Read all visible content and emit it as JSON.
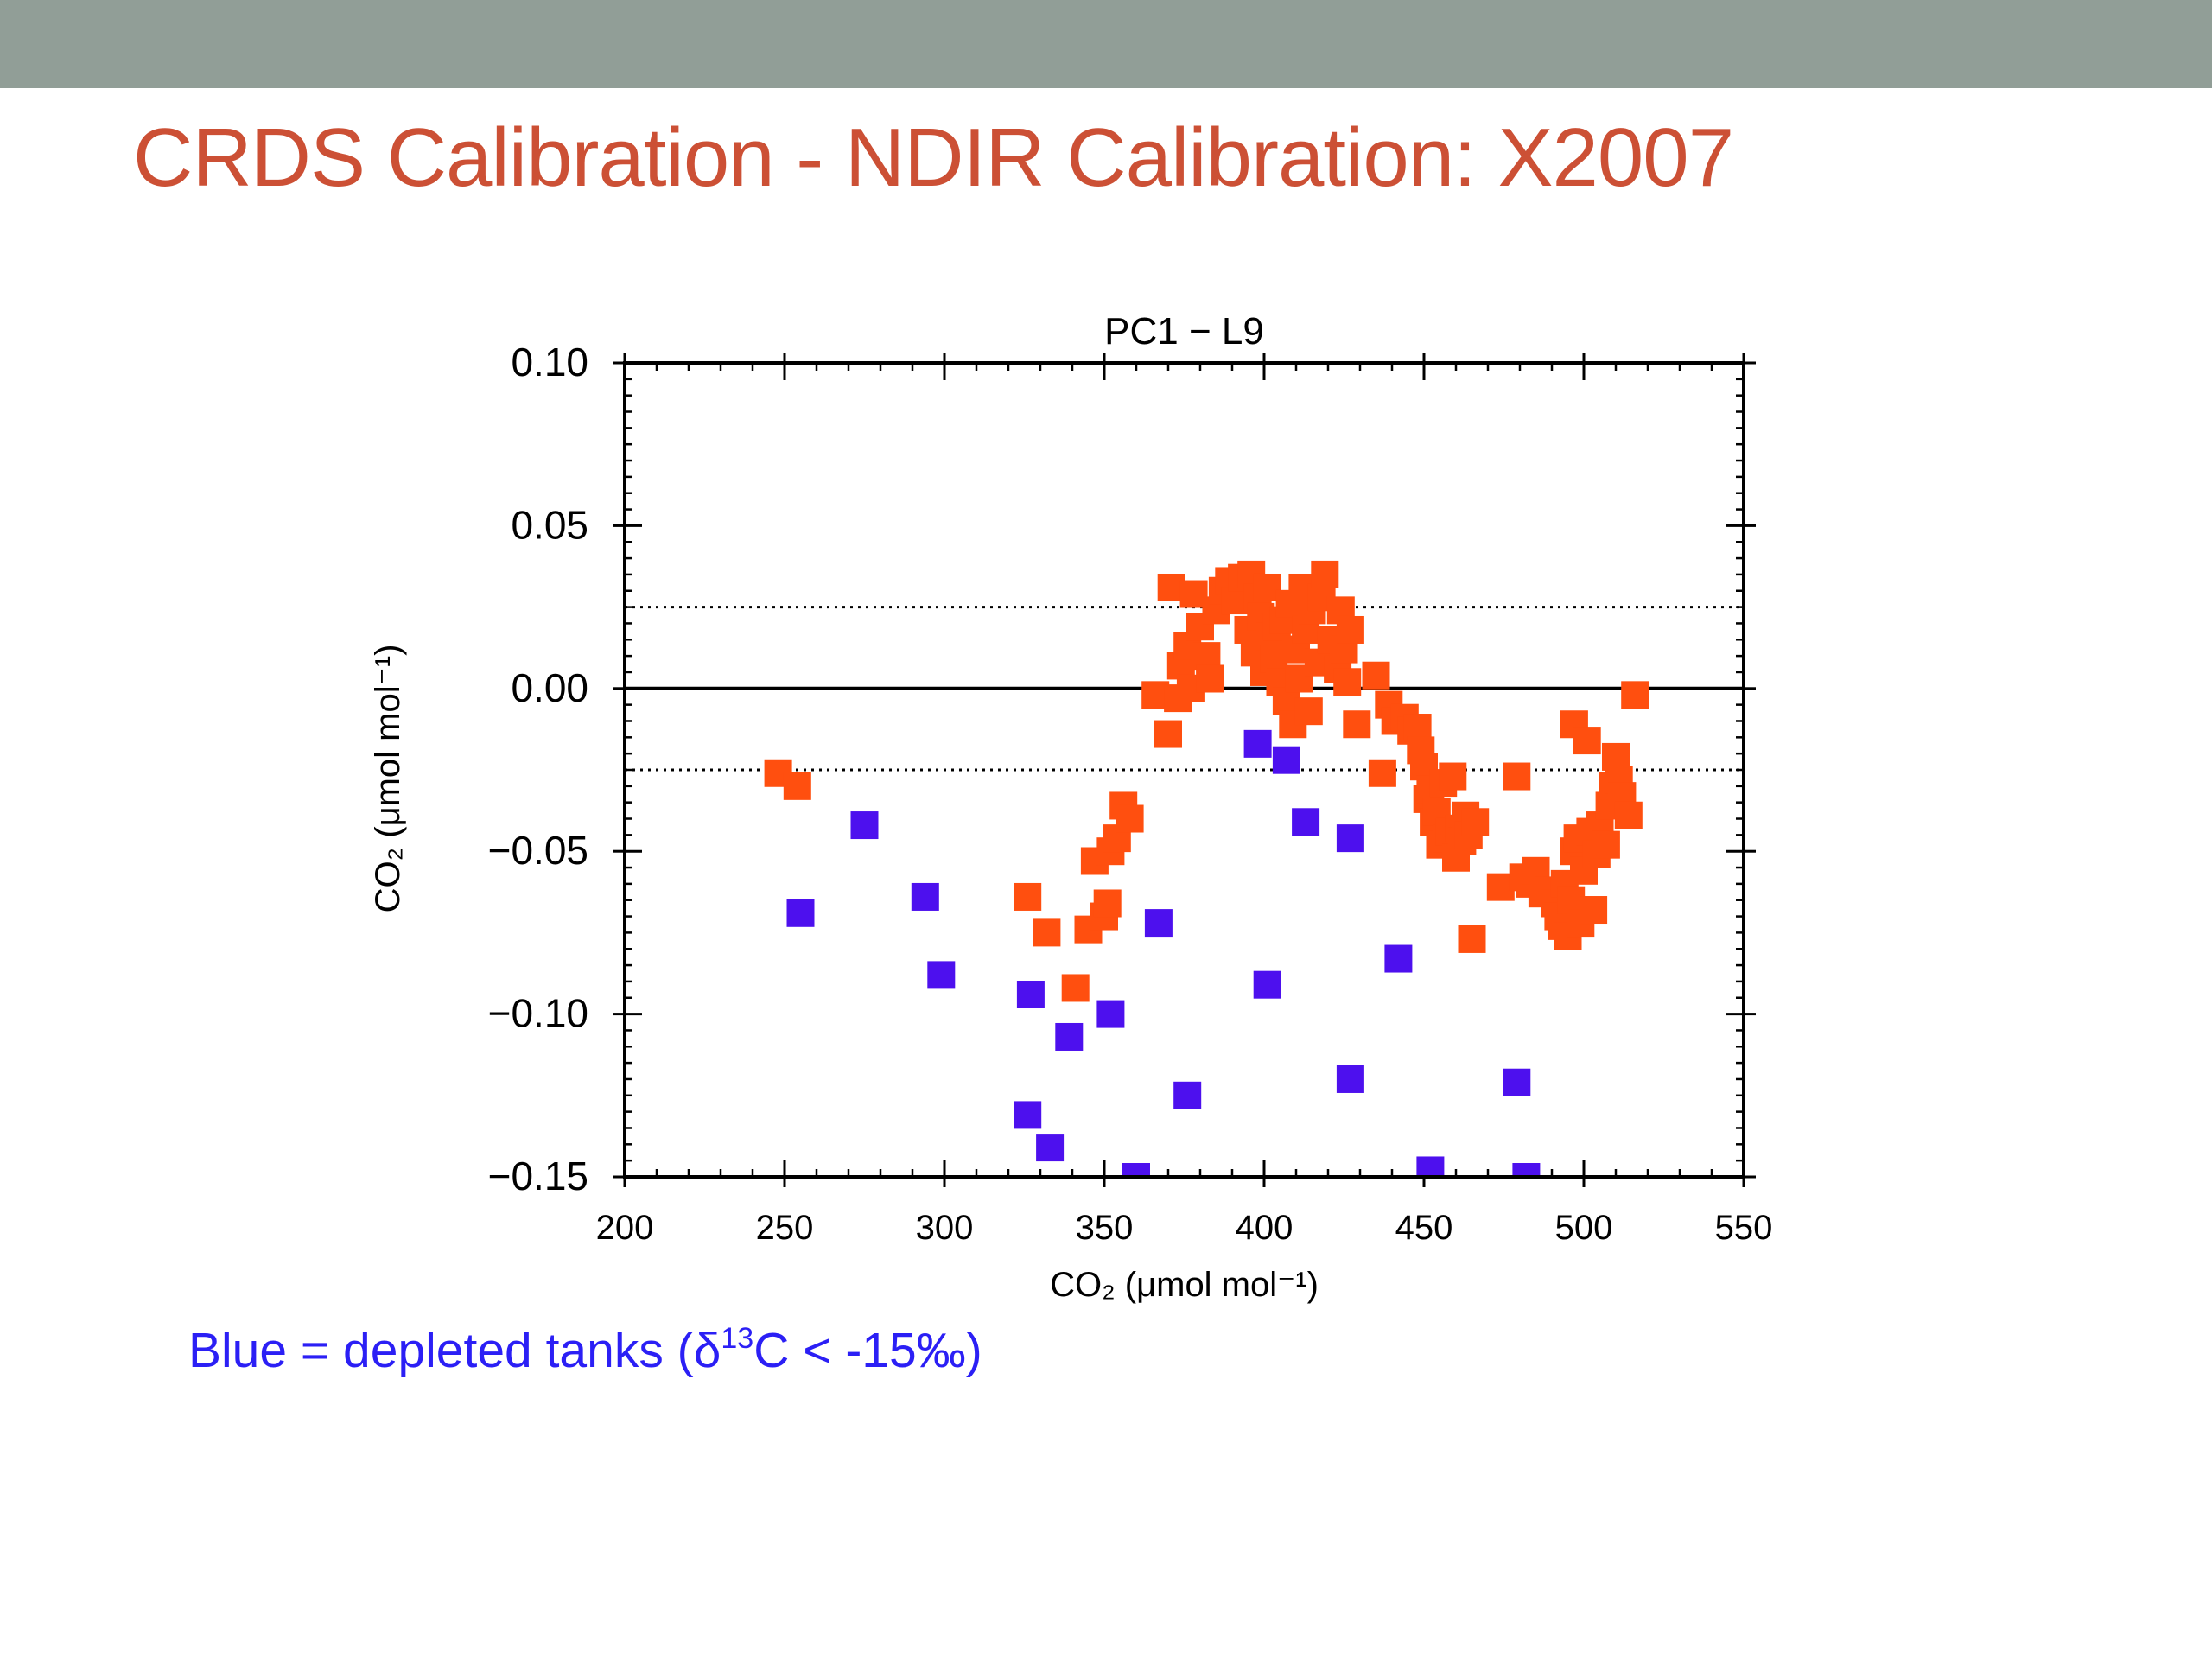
{
  "slide": {
    "title": "CRDS Calibration - NDIR Calibration:  X2007",
    "caption_prefix": "Blue = depleted tanks (δ",
    "caption_sup": "13",
    "caption_suffix": "C < -15‰)",
    "caption_color": "#2b1ff5",
    "title_color": "#cc5035"
  },
  "chart_data": {
    "type": "scatter",
    "title": "PC1 − L9",
    "xlabel": "CO₂ (μmol mol⁻¹)",
    "ylabel": "CO₂ (μmol mol⁻¹)",
    "xlim": [
      200,
      550
    ],
    "ylim": [
      -0.15,
      0.1
    ],
    "xticks": [
      "200",
      "250",
      "300",
      "350",
      "400",
      "450",
      "500",
      "550"
    ],
    "yticks": [
      "0.10",
      "0.05",
      "0.00",
      "−0.05",
      "−0.10",
      "−0.15"
    ],
    "ref_lines": [
      {
        "y": 0.0,
        "style": "solid"
      },
      {
        "y": 0.025,
        "style": "dotted"
      },
      {
        "y": -0.025,
        "style": "dotted"
      }
    ],
    "grid": false,
    "marker": "square",
    "series": [
      {
        "color": "#ff4f0f",
        "points": [
          [
            248,
            -0.026
          ],
          [
            254,
            -0.03
          ],
          [
            326,
            -0.064
          ],
          [
            332,
            -0.075
          ],
          [
            341,
            -0.092
          ],
          [
            345,
            -0.074
          ],
          [
            347,
            -0.053
          ],
          [
            350,
            -0.07
          ],
          [
            351,
            -0.066
          ],
          [
            352,
            -0.05
          ],
          [
            354,
            -0.046
          ],
          [
            356,
            -0.036
          ],
          [
            358,
            -0.04
          ],
          [
            366,
            -0.002
          ],
          [
            370,
            -0.014
          ],
          [
            371,
            0.031
          ],
          [
            373,
            -0.003
          ],
          [
            374,
            0.007
          ],
          [
            376,
            0.013
          ],
          [
            377,
            0.0
          ],
          [
            378,
            0.029
          ],
          [
            380,
            0.019
          ],
          [
            382,
            0.01
          ],
          [
            383,
            0.003
          ],
          [
            385,
            0.024
          ],
          [
            387,
            0.03
          ],
          [
            389,
            0.033
          ],
          [
            391,
            0.027
          ],
          [
            393,
            0.034
          ],
          [
            395,
            0.018
          ],
          [
            396,
            0.035
          ],
          [
            397,
            0.011
          ],
          [
            398,
            0.028
          ],
          [
            399,
            0.022
          ],
          [
            400,
            0.005
          ],
          [
            401,
            0.031
          ],
          [
            402,
            0.016
          ],
          [
            403,
            0.009
          ],
          [
            404,
            0.019
          ],
          [
            405,
            0.002
          ],
          [
            406,
            0.021
          ],
          [
            407,
            -0.004
          ],
          [
            408,
            0.026
          ],
          [
            409,
            -0.011
          ],
          [
            410,
            0.012
          ],
          [
            411,
            0.003
          ],
          [
            412,
            0.031
          ],
          [
            413,
            0.018
          ],
          [
            414,
            -0.007
          ],
          [
            415,
            0.024
          ],
          [
            417,
            0.008
          ],
          [
            418,
            0.028
          ],
          [
            419,
            0.035
          ],
          [
            421,
            0.015
          ],
          [
            423,
            0.006
          ],
          [
            424,
            0.024
          ],
          [
            425,
            0.012
          ],
          [
            426,
            0.002
          ],
          [
            427,
            0.018
          ],
          [
            429,
            -0.011
          ],
          [
            435,
            0.004
          ],
          [
            437,
            -0.026
          ],
          [
            439,
            -0.005
          ],
          [
            441,
            -0.01
          ],
          [
            444,
            -0.009
          ],
          [
            446,
            -0.013
          ],
          [
            448,
            -0.012
          ],
          [
            449,
            -0.019
          ],
          [
            450,
            -0.024
          ],
          [
            451,
            -0.034
          ],
          [
            452,
            -0.031
          ],
          [
            453,
            -0.041
          ],
          [
            454,
            -0.038
          ],
          [
            455,
            -0.048
          ],
          [
            456,
            -0.029
          ],
          [
            457,
            -0.046
          ],
          [
            458,
            -0.044
          ],
          [
            459,
            -0.027
          ],
          [
            460,
            -0.052
          ],
          [
            461,
            -0.043
          ],
          [
            462,
            -0.047
          ],
          [
            463,
            -0.039
          ],
          [
            464,
            -0.045
          ],
          [
            465,
            -0.077
          ],
          [
            466,
            -0.041
          ],
          [
            474,
            -0.061
          ],
          [
            479,
            -0.027
          ],
          [
            481,
            -0.058
          ],
          [
            483,
            -0.06
          ],
          [
            485,
            -0.056
          ],
          [
            487,
            -0.063
          ],
          [
            489,
            -0.062
          ],
          [
            491,
            -0.066
          ],
          [
            492,
            -0.07
          ],
          [
            493,
            -0.073
          ],
          [
            494,
            -0.06
          ],
          [
            495,
            -0.076
          ],
          [
            496,
            -0.065
          ],
          [
            497,
            -0.05
          ],
          [
            497,
            -0.011
          ],
          [
            498,
            -0.046
          ],
          [
            499,
            -0.072
          ],
          [
            500,
            -0.056
          ],
          [
            501,
            -0.016
          ],
          [
            502,
            -0.044
          ],
          [
            503,
            -0.068
          ],
          [
            504,
            -0.051
          ],
          [
            505,
            -0.042
          ],
          [
            507,
            -0.048
          ],
          [
            508,
            -0.036
          ],
          [
            509,
            -0.03
          ],
          [
            510,
            -0.021
          ],
          [
            511,
            -0.028
          ],
          [
            512,
            -0.033
          ],
          [
            514,
            -0.039
          ],
          [
            516,
            -0.002
          ]
        ]
      },
      {
        "color": "#4d10ee",
        "points": [
          [
            255,
            -0.069
          ],
          [
            275,
            -0.042
          ],
          [
            294,
            -0.064
          ],
          [
            299,
            -0.088
          ],
          [
            326,
            -0.131
          ],
          [
            327,
            -0.094
          ],
          [
            333,
            -0.141
          ],
          [
            339,
            -0.107
          ],
          [
            352,
            -0.1
          ],
          [
            360,
            -0.15
          ],
          [
            367,
            -0.072
          ],
          [
            376,
            -0.125
          ],
          [
            398,
            -0.017
          ],
          [
            401,
            -0.091
          ],
          [
            407,
            -0.022
          ],
          [
            413,
            -0.041
          ],
          [
            427,
            -0.046
          ],
          [
            427,
            -0.12
          ],
          [
            442,
            -0.083
          ],
          [
            452,
            -0.148
          ],
          [
            479,
            -0.121
          ],
          [
            482,
            -0.15
          ]
        ]
      }
    ]
  }
}
